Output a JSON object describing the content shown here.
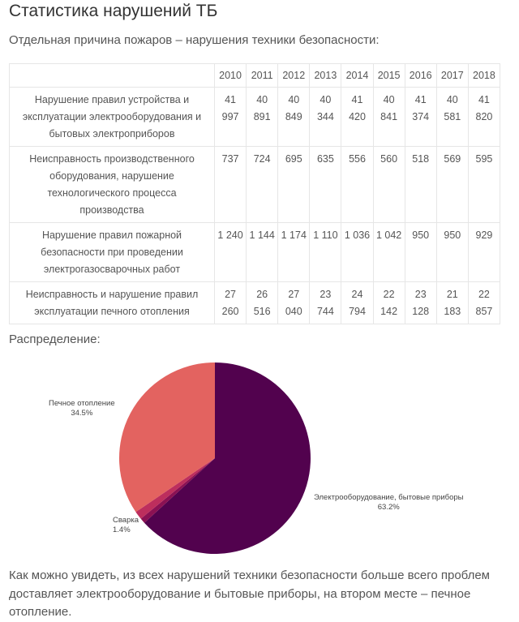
{
  "page": {
    "title": "Статистика нарушений ТБ",
    "subtitle": "Отдельная причина пожаров – нарушения техники безопасности:",
    "distribution_label": "Распределение:",
    "conclusion": "Как можно увидеть, из всех нарушений техники безопасности больше всего проблем доставляет электрооборудование и бытовые приборы, на втором месте – печное отопление."
  },
  "table": {
    "years": [
      "2010",
      "2011",
      "2012",
      "2013",
      "2014",
      "2015",
      "2016",
      "2017",
      "2018"
    ],
    "rows": [
      {
        "cause": "Нарушение правил устройства и эксплуатации электрооборудования и бытовых электроприборов",
        "values": [
          "41 997",
          "40 891",
          "40 849",
          "40 344",
          "41 420",
          "40 841",
          "41 374",
          "40 581",
          "41 820"
        ]
      },
      {
        "cause": "Неисправность производственного оборудования, нарушение технологического процесса производства",
        "values": [
          "737",
          "724",
          "695",
          "635",
          "556",
          "560",
          "518",
          "569",
          "595"
        ]
      },
      {
        "cause": "Нарушение правил пожарной безопасности при проведении электрогазосварочных работ",
        "values": [
          "1 240",
          "1 144",
          "1 174",
          "1 110",
          "1 036",
          "1 042",
          "950",
          "950",
          "929"
        ]
      },
      {
        "cause": "Неисправность и нарушение правил эксплуатации печного отопления",
        "values": [
          "27 260",
          "26 516",
          "27 040",
          "23 744",
          "24 794",
          "22 142",
          "23 128",
          "21 183",
          "22 857"
        ]
      }
    ]
  },
  "chart_data": {
    "type": "pie",
    "slices": [
      {
        "label": "Электрооборудование, бытовые приборы",
        "percent_label": "63.2%",
        "value": 63.2,
        "color": "#52024e"
      },
      {
        "label": "",
        "percent_label": "",
        "value": 0.9,
        "color": "#8b1153"
      },
      {
        "label": "Сварка",
        "percent_label": "1.4%",
        "value": 1.4,
        "color": "#bd2e5d"
      },
      {
        "label": "Печное отопление",
        "percent_label": "34.5%",
        "value": 34.5,
        "color": "#e36360"
      }
    ],
    "start_angle_deg": 0,
    "direction": "clockwise"
  }
}
